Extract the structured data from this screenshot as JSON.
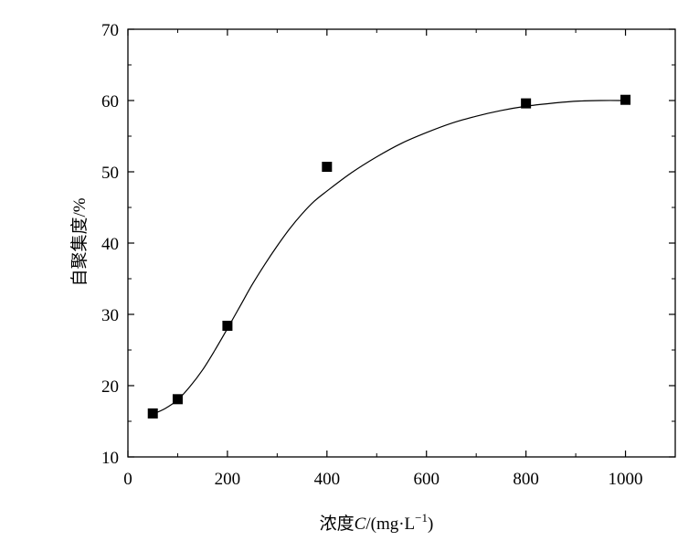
{
  "chart_data": {
    "type": "scatter",
    "xlabel": "浓度C/(mg·L⁻¹)",
    "xlabel_parts": {
      "prefix": "浓度",
      "var": "C",
      "unit": "/(mg·L",
      "sup": "−1",
      "close": ")"
    },
    "ylabel": "自聚集度/%",
    "xlim": [
      0,
      1100
    ],
    "ylim": [
      10,
      70
    ],
    "x_ticks": [
      0,
      200,
      400,
      600,
      800,
      1000
    ],
    "y_ticks": [
      10,
      20,
      30,
      40,
      50,
      60,
      70
    ],
    "grid": false,
    "legend": "none",
    "marker": "square",
    "marker_color": "#000000",
    "series": [
      {
        "x": [
          50,
          100,
          200,
          400,
          800,
          1000
        ],
        "y": [
          16.1,
          18.1,
          28.4,
          50.7,
          59.6,
          60.1
        ]
      }
    ],
    "fit_curve": {
      "style": "smooth line",
      "color": "#000000",
      "points": [
        [
          50,
          16.0
        ],
        [
          75,
          16.8
        ],
        [
          100,
          18.0
        ],
        [
          125,
          19.9
        ],
        [
          150,
          22.2
        ],
        [
          175,
          25.0
        ],
        [
          200,
          28.0
        ],
        [
          225,
          31.1
        ],
        [
          250,
          34.2
        ],
        [
          275,
          37.0
        ],
        [
          300,
          39.6
        ],
        [
          325,
          42.0
        ],
        [
          350,
          44.1
        ],
        [
          375,
          45.9
        ],
        [
          400,
          47.3
        ],
        [
          450,
          49.9
        ],
        [
          500,
          52.1
        ],
        [
          550,
          54.0
        ],
        [
          600,
          55.5
        ],
        [
          650,
          56.8
        ],
        [
          700,
          57.8
        ],
        [
          750,
          58.6
        ],
        [
          800,
          59.2
        ],
        [
          850,
          59.6
        ],
        [
          900,
          59.9
        ],
        [
          950,
          60.0
        ],
        [
          1000,
          60.0
        ]
      ]
    }
  }
}
